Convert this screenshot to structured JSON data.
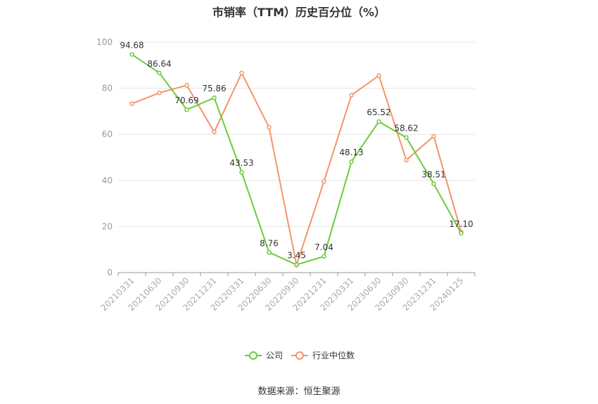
{
  "chart_data": {
    "type": "line",
    "title": "市销率（TTM）历史百分位（%）",
    "categories": [
      "20210331",
      "20210630",
      "20210930",
      "20211231",
      "20220331",
      "20220630",
      "20220930",
      "20221231",
      "20230331",
      "20230630",
      "20230930",
      "20231231",
      "20240125"
    ],
    "series": [
      {
        "name": "公司",
        "color": "#6ACB3C",
        "values": [
          94.68,
          86.64,
          70.69,
          75.86,
          43.53,
          8.76,
          3.45,
          7.04,
          48.13,
          65.52,
          58.62,
          38.51,
          17.1
        ],
        "labels": [
          "94.68",
          "86.64",
          "70.69",
          "75.86",
          "43.53",
          "8.76",
          "3.45",
          "7.04",
          "48.13",
          "65.52",
          "58.62",
          "38.51",
          "17.10"
        ]
      },
      {
        "name": "行业中位数",
        "color": "#F4946A",
        "values": [
          73.3,
          78.0,
          81.3,
          61.0,
          86.6,
          63.0,
          3.3,
          39.6,
          77.0,
          85.5,
          48.8,
          59.2,
          17.6
        ]
      }
    ],
    "yticks": [
      0,
      20,
      40,
      60,
      80,
      100
    ],
    "ylim": [
      0,
      100
    ],
    "grid": true,
    "legend_position": "bottom-center"
  },
  "source_note": "数据来源：恒生聚源"
}
